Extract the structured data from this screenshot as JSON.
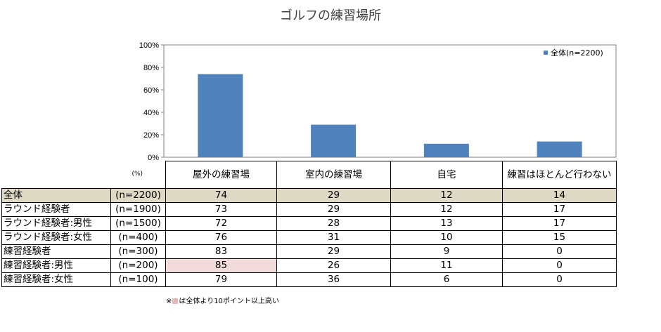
{
  "title": "ゴルフの練習場所",
  "unit_label": "(%)",
  "footnote": {
    "prefix": "※",
    "text": "は全体より10ポイント以上高い",
    "highlight_color": "#e6b9b8"
  },
  "colors": {
    "bar": "#4f81bd",
    "total_row": "#ddd9c4",
    "highlight": "#f2dcdb"
  },
  "chart_data": {
    "type": "bar",
    "categories": [
      "屋外の練習場",
      "室内の練習場",
      "自宅",
      "練習はほとんど行わない"
    ],
    "series": [
      {
        "name": "全体(n=2200)",
        "values": [
          74,
          29,
          12,
          14
        ]
      }
    ],
    "ylim": [
      0,
      100
    ],
    "yticks": [
      "0%",
      "20%",
      "40%",
      "60%",
      "80%",
      "100%"
    ],
    "ytick_values": [
      0,
      20,
      40,
      60,
      80,
      100
    ],
    "legend_position": "top-right",
    "grid": false
  },
  "table": {
    "columns": [
      "屋外の練習場",
      "室内の練習場",
      "自宅",
      "練習はほとんど行わない"
    ],
    "rows": [
      {
        "label": "全体",
        "n": "(n=2200)",
        "values": [
          "74",
          "29",
          "12",
          "14"
        ]
      },
      {
        "label": "ラウンド経験者",
        "n": "(n=1900)",
        "values": [
          "73",
          "29",
          "12",
          "17"
        ]
      },
      {
        "label": "ラウンド経験者:男性",
        "n": "(n=1500)",
        "values": [
          "72",
          "28",
          "13",
          "17"
        ]
      },
      {
        "label": "ラウンド経験者:女性",
        "n": "(n=400)",
        "values": [
          "76",
          "31",
          "10",
          "15"
        ]
      },
      {
        "label": "練習経験者",
        "n": "(n=300)",
        "values": [
          "83",
          "29",
          "9",
          "0"
        ]
      },
      {
        "label": "練習経験者:男性",
        "n": "(n=200)",
        "values": [
          "85",
          "26",
          "11",
          "0"
        ]
      },
      {
        "label": "練習経験者:女性",
        "n": "(n=100)",
        "values": [
          "79",
          "36",
          "6",
          "0"
        ]
      }
    ],
    "highlighted_cells": [
      [
        5,
        0
      ]
    ]
  }
}
